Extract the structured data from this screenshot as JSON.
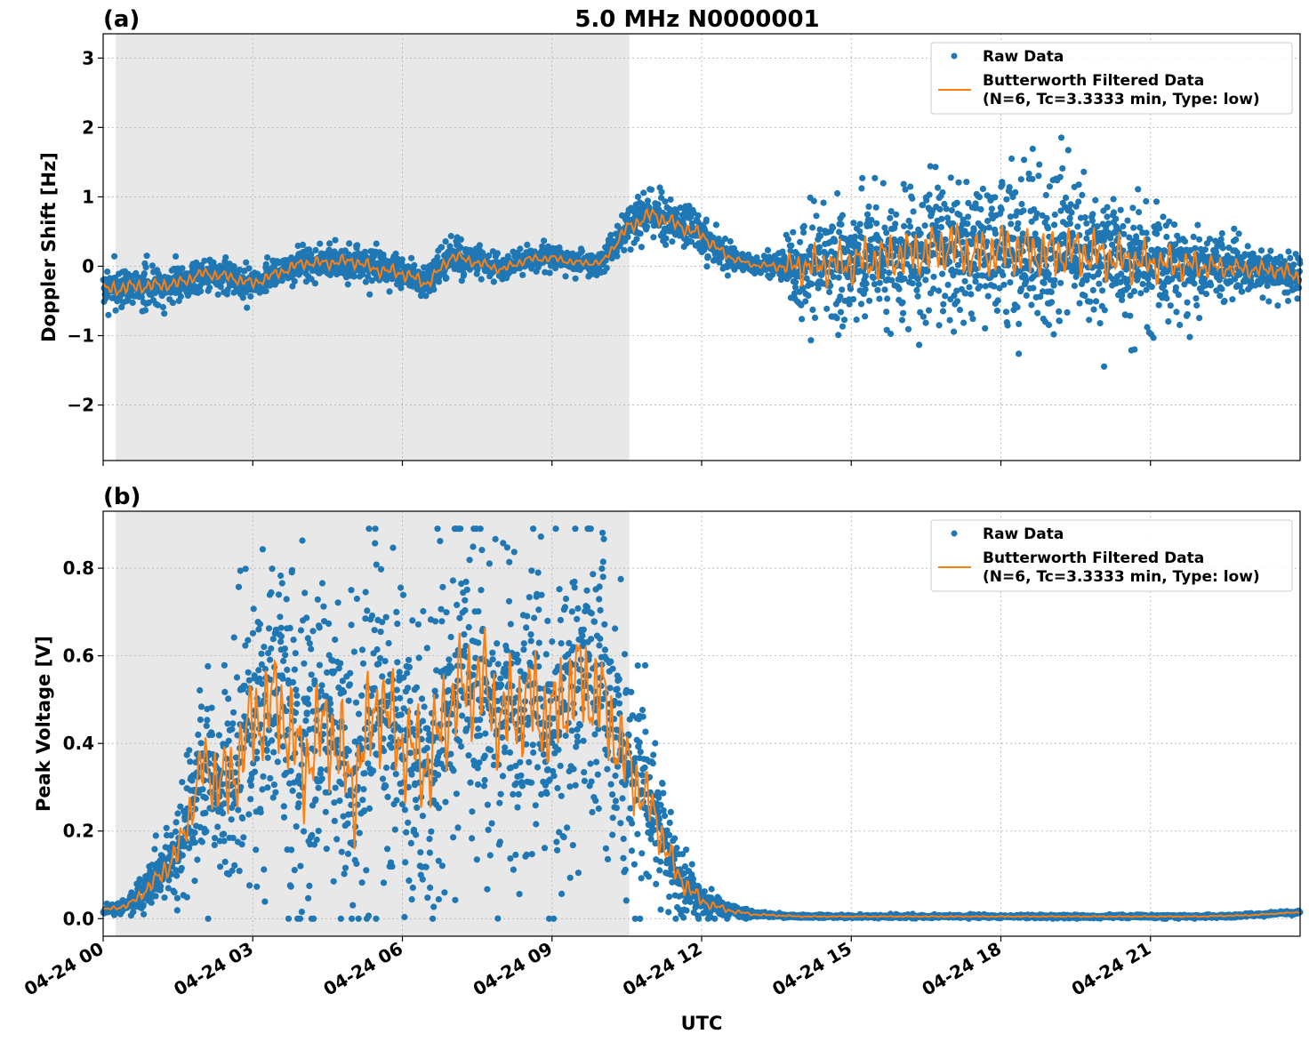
{
  "figure_title": "5.0 MHz N0000001",
  "colors": {
    "raw": "#1f77b4",
    "filtered": "#ff7f0e",
    "night_shade": "#e8e8e8",
    "grid": "#b0b0b0"
  },
  "chart_data": [
    {
      "type": "scatter",
      "panel_label": "(a)",
      "title": "5.0 MHz N0000001",
      "xlabel": "",
      "ylabel": "Doppler Shift [Hz]",
      "xlim_hours": [
        0,
        24
      ],
      "ylim": [
        -2.8,
        3.35
      ],
      "yticks": [
        3,
        2,
        1,
        0,
        -1,
        -2
      ],
      "ytick_labels": [
        "3",
        "2",
        "1",
        "0",
        "−1",
        "−2"
      ],
      "shaded_region_hours": [
        0.25,
        10.55
      ],
      "grid": true,
      "legend_position": "upper right",
      "series": [
        {
          "name": "Raw Data",
          "marker": "dot"
        },
        {
          "name": "Butterworth Filtered Data",
          "name_line2": "(N=6, Tc=3.3333 min, Type: low)",
          "marker": "line"
        }
      ],
      "filtered_profile": {
        "x_hours": [
          0,
          0.5,
          1,
          1.5,
          2,
          2.5,
          3,
          3.5,
          4,
          4.5,
          5,
          5.5,
          6,
          6.5,
          7,
          7.5,
          8,
          8.5,
          9,
          9.5,
          10,
          10.5,
          11,
          11.5,
          12,
          12.5,
          13,
          13.5,
          14,
          14.5,
          15,
          15.5,
          16,
          16.5,
          17,
          17.5,
          18,
          18.5,
          19,
          19.5,
          20,
          20.5,
          21,
          21.5,
          22,
          22.5,
          23,
          23.5,
          24
        ],
        "y": [
          -0.35,
          -0.3,
          -0.28,
          -0.25,
          -0.1,
          -0.15,
          -0.25,
          -0.1,
          0.05,
          0.05,
          0.08,
          -0.05,
          -0.1,
          -0.25,
          0.15,
          0.05,
          -0.05,
          0.1,
          0.12,
          0.05,
          0.05,
          0.55,
          0.75,
          0.6,
          0.45,
          0.15,
          0.02,
          0.0,
          0.0,
          0.02,
          0.05,
          0.1,
          0.15,
          0.2,
          0.3,
          0.15,
          0.25,
          0.2,
          0.18,
          0.22,
          0.15,
          0.08,
          0.05,
          0.02,
          0.0,
          -0.02,
          -0.05,
          -0.05,
          -0.15
        ]
      },
      "spread_profile": {
        "x_hours": [
          0,
          2,
          4,
          6,
          8,
          10,
          10.5,
          11,
          12,
          13,
          13.5,
          14,
          15,
          16,
          17,
          18,
          19,
          20,
          21,
          22,
          23,
          24
        ],
        "halfwidth": [
          0.35,
          0.25,
          0.25,
          0.3,
          0.2,
          0.15,
          0.3,
          0.35,
          0.3,
          0.1,
          0.2,
          0.8,
          1.0,
          1.1,
          1.2,
          1.2,
          1.2,
          1.1,
          0.9,
          0.6,
          0.35,
          0.35
        ]
      }
    },
    {
      "type": "scatter",
      "panel_label": "(b)",
      "title": "",
      "xlabel": "UTC",
      "ylabel": "Peak Voltage [V]",
      "xlim_hours": [
        0,
        24
      ],
      "ylim": [
        -0.04,
        0.93
      ],
      "yticks": [
        0.0,
        0.2,
        0.4,
        0.6,
        0.8
      ],
      "ytick_labels": [
        "0.0",
        "0.2",
        "0.4",
        "0.6",
        "0.8"
      ],
      "xticks_hours": [
        0,
        3,
        6,
        9,
        12,
        15,
        18,
        21
      ],
      "xtick_labels": [
        "04-24 00",
        "04-24 03",
        "04-24 06",
        "04-24 09",
        "04-24 12",
        "04-24 15",
        "04-24 18",
        "04-24 21"
      ],
      "shaded_region_hours": [
        0.25,
        10.55
      ],
      "grid": true,
      "legend_position": "upper right",
      "series": [
        {
          "name": "Raw Data",
          "marker": "dot"
        },
        {
          "name": "Butterworth Filtered Data",
          "name_line2": "(N=6, Tc=3.3333 min, Type: low)",
          "marker": "line"
        }
      ],
      "filtered_profile": {
        "x_hours": [
          0,
          0.5,
          1,
          1.5,
          2,
          2.5,
          3,
          3.5,
          4,
          4.5,
          5,
          5.5,
          6,
          6.5,
          7,
          7.5,
          8,
          8.5,
          9,
          9.5,
          10,
          10.5,
          11,
          11.5,
          12,
          12.5,
          13,
          14,
          15,
          16,
          17,
          18,
          19,
          20,
          21,
          22,
          23,
          24
        ],
        "y": [
          0.02,
          0.03,
          0.08,
          0.15,
          0.35,
          0.3,
          0.45,
          0.5,
          0.35,
          0.45,
          0.3,
          0.5,
          0.4,
          0.35,
          0.5,
          0.55,
          0.45,
          0.5,
          0.45,
          0.55,
          0.5,
          0.35,
          0.25,
          0.1,
          0.04,
          0.02,
          0.01,
          0.005,
          0.005,
          0.005,
          0.005,
          0.005,
          0.005,
          0.005,
          0.005,
          0.005,
          0.008,
          0.015
        ]
      },
      "spread_profile": {
        "x_hours": [
          0,
          0.5,
          1,
          1.5,
          2,
          3,
          4,
          5,
          6,
          7,
          8,
          9,
          10,
          10.5,
          11,
          11.5,
          12,
          12.5,
          13,
          14,
          24
        ],
        "halfwidth": [
          0.01,
          0.02,
          0.06,
          0.12,
          0.25,
          0.38,
          0.4,
          0.4,
          0.38,
          0.4,
          0.4,
          0.4,
          0.38,
          0.3,
          0.2,
          0.1,
          0.04,
          0.02,
          0.008,
          0.004,
          0.004
        ]
      }
    }
  ]
}
